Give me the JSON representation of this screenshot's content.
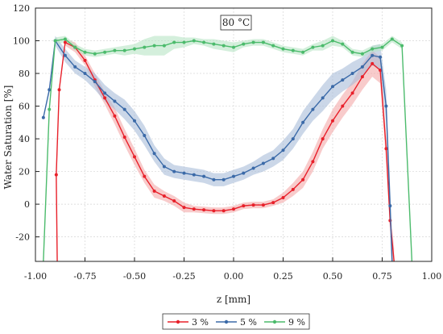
{
  "chart_data": {
    "type": "line",
    "annotation": "80 °C",
    "xlabel": "z [mm]",
    "ylabel": "Water Saturation [%]",
    "xlim": [
      -1.0,
      1.0
    ],
    "ylim": [
      -35,
      120
    ],
    "xticks": [
      "-1.00",
      "-0.75",
      "-0.50",
      "-0.25",
      "0.00",
      "0.25",
      "0.50",
      "0.75",
      "1.00"
    ],
    "yticks": [
      "-20",
      "0",
      "20",
      "40",
      "60",
      "80",
      "100",
      "120"
    ],
    "grid": true,
    "legend": "bottom-center",
    "series": [
      {
        "name": "3 %",
        "color": "#e8202a",
        "band": "#f4a8a8",
        "x": [
          -0.89,
          -0.895,
          -0.88,
          -0.85,
          -0.8,
          -0.75,
          -0.7,
          -0.65,
          -0.6,
          -0.55,
          -0.5,
          -0.45,
          -0.4,
          -0.35,
          -0.3,
          -0.25,
          -0.2,
          -0.15,
          -0.1,
          -0.05,
          0.0,
          0.05,
          0.1,
          0.15,
          0.2,
          0.25,
          0.3,
          0.35,
          0.4,
          0.45,
          0.5,
          0.55,
          0.6,
          0.65,
          0.7,
          0.74,
          0.77,
          0.79,
          0.81
        ],
        "y": [
          -35,
          18,
          70,
          99,
          96,
          88,
          76,
          65,
          54,
          41,
          29,
          17,
          8,
          5,
          2,
          -2,
          -3,
          -3.5,
          -4,
          -4,
          -3,
          -1,
          -0.5,
          -0.5,
          1,
          4,
          9,
          15,
          26,
          40,
          51,
          60,
          68,
          78,
          86,
          82,
          34,
          -10,
          -35
        ],
        "band_w": [
          0,
          0,
          0,
          2,
          3,
          3,
          4,
          4,
          5,
          5,
          5,
          4,
          4,
          3,
          3,
          3,
          2,
          2,
          2,
          2,
          2,
          2,
          2,
          2,
          2,
          3,
          4,
          5,
          6,
          6,
          7,
          7,
          7,
          8,
          8,
          8,
          8,
          8,
          8
        ]
      },
      {
        "name": "5 %",
        "color": "#3b6aa8",
        "band": "#a8bcd8",
        "x": [
          -0.96,
          -0.93,
          -0.9,
          -0.85,
          -0.8,
          -0.75,
          -0.7,
          -0.65,
          -0.6,
          -0.55,
          -0.5,
          -0.45,
          -0.4,
          -0.35,
          -0.3,
          -0.25,
          -0.2,
          -0.15,
          -0.1,
          -0.05,
          0.0,
          0.05,
          0.1,
          0.15,
          0.2,
          0.25,
          0.3,
          0.35,
          0.4,
          0.45,
          0.5,
          0.55,
          0.6,
          0.65,
          0.7,
          0.74,
          0.77,
          0.79,
          0.8
        ],
        "y": [
          53,
          70,
          100,
          91,
          84,
          80,
          75,
          68,
          63,
          58,
          51,
          42,
          31,
          23,
          20,
          19,
          18,
          17,
          15,
          15,
          17,
          19,
          22,
          25,
          28,
          33,
          40,
          50,
          58,
          65,
          72,
          76,
          80,
          84,
          91,
          90,
          60,
          -1,
          -35
        ],
        "band_w": [
          0,
          2,
          3,
          4,
          4,
          4,
          5,
          5,
          5,
          6,
          6,
          6,
          5,
          5,
          4,
          4,
          4,
          4,
          4,
          4,
          4,
          4,
          4,
          5,
          5,
          6,
          6,
          7,
          7,
          8,
          8,
          7,
          7,
          6,
          6,
          8,
          10,
          12,
          12
        ]
      },
      {
        "name": "9 %",
        "color": "#4cbb6c",
        "band": "#b8e4c4",
        "x": [
          -0.96,
          -0.93,
          -0.9,
          -0.85,
          -0.8,
          -0.75,
          -0.7,
          -0.65,
          -0.6,
          -0.55,
          -0.5,
          -0.45,
          -0.4,
          -0.35,
          -0.3,
          -0.25,
          -0.2,
          -0.15,
          -0.1,
          -0.05,
          0.0,
          0.05,
          0.1,
          0.15,
          0.2,
          0.25,
          0.3,
          0.35,
          0.4,
          0.45,
          0.5,
          0.55,
          0.6,
          0.65,
          0.7,
          0.75,
          0.8,
          0.85,
          0.9
        ],
        "y": [
          -35,
          58,
          100,
          101,
          96,
          93,
          92,
          93,
          94,
          94,
          95,
          96,
          97,
          97,
          99,
          99,
          100,
          99,
          98,
          97,
          96,
          98,
          99,
          99,
          97,
          95,
          94,
          93,
          96,
          97,
          100,
          98,
          93,
          92,
          95,
          96,
          101,
          97,
          -35
        ],
        "band_w": [
          0,
          0,
          2,
          2,
          2,
          2,
          2,
          2,
          2,
          3,
          3,
          5,
          6,
          6,
          4,
          3,
          2,
          2,
          3,
          3,
          3,
          2,
          2,
          2,
          2,
          2,
          2,
          2,
          2,
          3,
          3,
          2,
          2,
          2,
          2,
          2,
          2,
          2,
          0
        ]
      }
    ]
  }
}
